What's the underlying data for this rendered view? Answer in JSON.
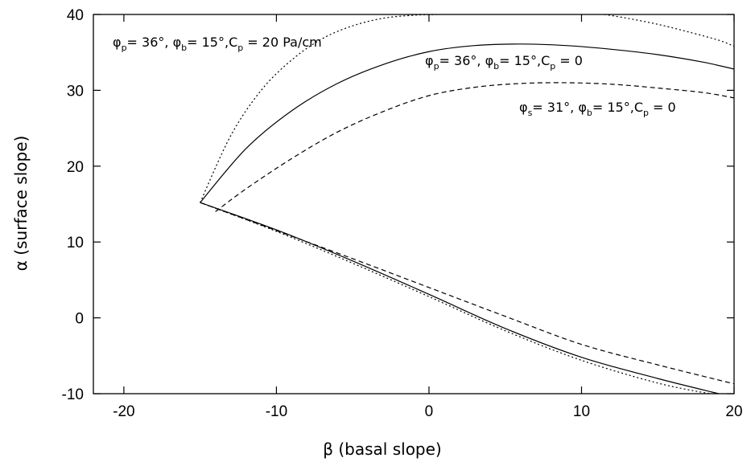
{
  "chart_data": {
    "type": "line",
    "title": "",
    "xlabel": "β (basal slope)",
    "ylabel": "α (surface slope)",
    "xlim": [
      -22,
      20
    ],
    "ylim": [
      -10,
      40
    ],
    "xticks": [
      -20,
      -10,
      0,
      10,
      20
    ],
    "yticks": [
      -10,
      0,
      10,
      20,
      30,
      40
    ],
    "grid": false,
    "legend": "none",
    "series": [
      {
        "style": "solid",
        "x": [
          -15,
          -12,
          -9,
          -6,
          -3,
          0,
          3,
          6,
          9,
          12,
          15,
          18,
          20
        ],
        "y": [
          15.2,
          22.3,
          27.3,
          30.9,
          33.4,
          35.1,
          35.9,
          36.1,
          35.9,
          35.4,
          34.7,
          33.7,
          32.8
        ]
      },
      {
        "style": "dashed",
        "x": [
          -14,
          -12,
          -9,
          -6,
          -3,
          0,
          3,
          6,
          9,
          12,
          15,
          18,
          20
        ],
        "y": [
          14.0,
          17.0,
          21.0,
          24.5,
          27.2,
          29.3,
          30.4,
          30.9,
          31.0,
          30.8,
          30.3,
          29.7,
          29.0
        ]
      },
      {
        "style": "dotted",
        "x": [
          -15,
          -13,
          -11,
          -9,
          -7,
          -5,
          -3,
          -1,
          0.5
        ],
        "y": [
          15.2,
          24.0,
          30.0,
          34.0,
          36.8,
          38.5,
          39.5,
          39.9,
          40.0
        ]
      },
      {
        "style": "dotted",
        "x": [
          11.5,
          13,
          15,
          17,
          19,
          20
        ],
        "y": [
          40.0,
          39.5,
          38.7,
          37.7,
          36.6,
          35.8
        ]
      },
      {
        "style": "solid",
        "x": [
          -15,
          -10,
          -5,
          0,
          5,
          10,
          15,
          19
        ],
        "y": [
          15.2,
          11.6,
          7.5,
          3.1,
          -1.4,
          -5.2,
          -8.0,
          -10.0
        ]
      },
      {
        "style": "dashed",
        "x": [
          -15,
          -10,
          -5,
          0,
          5,
          10,
          15,
          20
        ],
        "y": [
          15.2,
          11.5,
          7.8,
          4.0,
          0.2,
          -3.5,
          -6.2,
          -8.7
        ]
      },
      {
        "style": "dotted",
        "x": [
          -15,
          -10,
          -5,
          0,
          5,
          10,
          15,
          18.4
        ],
        "y": [
          15.2,
          11.4,
          7.2,
          2.8,
          -1.7,
          -5.6,
          -8.6,
          -10.0
        ]
      }
    ],
    "annotations": [
      {
        "phi_base": "φ",
        "phi_sub": "p",
        "eq1": "= 36°, ",
        "phib_base": "φ",
        "phib_sub": "b",
        "eq2": "= 15°,",
        "c_base": "C",
        "c_sub": "p",
        "eq3": " = 20 Pa/cm"
      },
      {
        "phi_base": "φ",
        "phi_sub": "p",
        "eq1": "= 36°, ",
        "phib_base": "φ",
        "phib_sub": "b",
        "eq2": "= 15°,",
        "c_base": "C",
        "c_sub": "p",
        "eq3": " = 0"
      },
      {
        "phi_base": "φ",
        "phi_sub": "s",
        "eq1": "= 31°, ",
        "phib_base": "φ",
        "phib_sub": "b",
        "eq2": "= 15°,",
        "c_base": "C",
        "c_sub": "p",
        "eq3": " = 0"
      }
    ]
  }
}
